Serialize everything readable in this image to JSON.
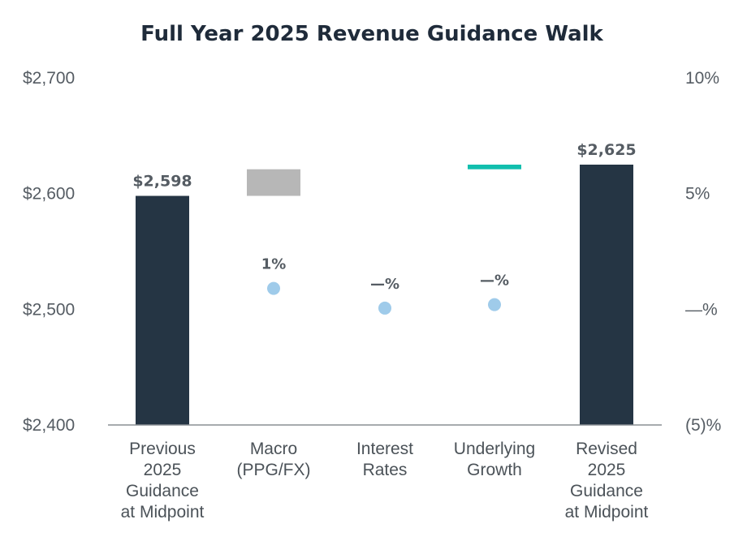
{
  "chart_data": {
    "type": "bar",
    "subtype": "waterfall-with-dot-overlay",
    "title": "Full Year 2025 Revenue Guidance Walk",
    "categories": [
      [
        "Previous",
        "2025",
        "Guidance",
        "at Midpoint"
      ],
      [
        "Macro",
        "(PPG/FX)"
      ],
      [
        "Interest",
        "Rates"
      ],
      [
        "Underlying",
        "Growth"
      ],
      [
        "Revised",
        "2025",
        "Guidance",
        "at Midpoint"
      ]
    ],
    "left_axis": {
      "ylim": [
        2400,
        2700
      ],
      "ticks": [
        2400,
        2500,
        2600,
        2700
      ],
      "tick_labels": [
        "$2,400",
        "$2,500",
        "$2,600",
        "$2,700"
      ]
    },
    "right_axis": {
      "ylim": [
        -5,
        10
      ],
      "ticks": [
        -5,
        0,
        5,
        10
      ],
      "tick_labels": [
        "(5)%",
        "—%",
        "5%",
        "10%"
      ]
    },
    "bars": [
      {
        "kind": "total",
        "start": 2400,
        "end": 2598,
        "label": "$2,598",
        "color": "#253544"
      },
      {
        "kind": "step",
        "start": 2598,
        "end": 2621,
        "label": "",
        "color": "#b7b7b7"
      },
      {
        "kind": "step",
        "start": 2621,
        "end": 2621,
        "label": "",
        "color": "#b7b7b7"
      },
      {
        "kind": "step",
        "start": 2621,
        "end": 2625,
        "label": "",
        "color": "#12bfae"
      },
      {
        "kind": "total",
        "start": 2400,
        "end": 2625,
        "label": "$2,625",
        "color": "#253544"
      }
    ],
    "dots": [
      {
        "index": 1,
        "value": 0.9,
        "label": "1%"
      },
      {
        "index": 2,
        "value": 0.05,
        "label": "—%"
      },
      {
        "index": 3,
        "value": 0.2,
        "label": "—%"
      }
    ],
    "dot_color": "#9fcbea",
    "axis_line_color": "#8a8f94"
  }
}
